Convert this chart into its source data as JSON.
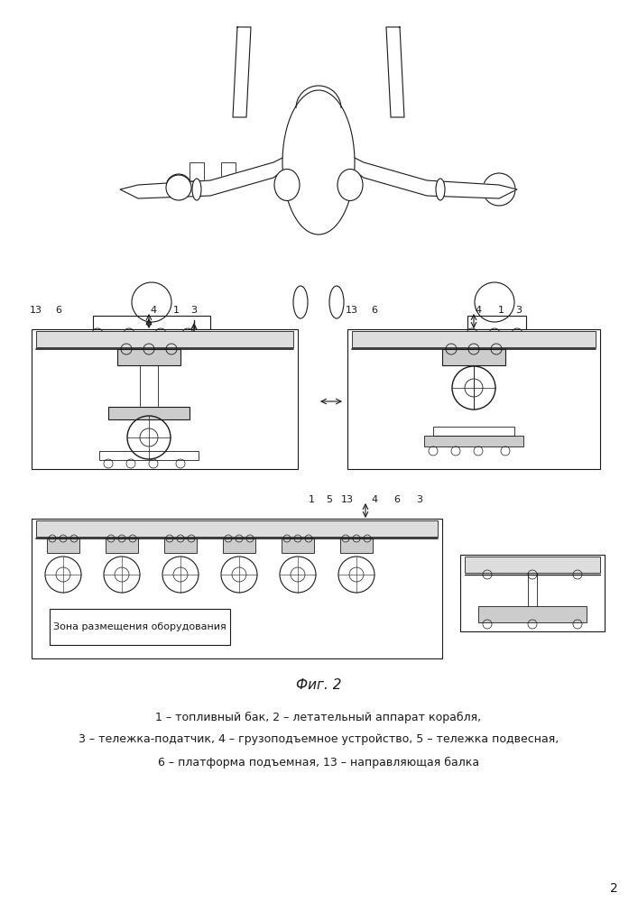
{
  "fig_label": "Фиг. 2",
  "caption_lines": [
    "1 – топливный бак, 2 – летательный аппарат корабля,",
    "3 – тележка-податчик, 4 – грузоподъемное устройство, 5 – тележка подвесная,",
    "6 – платформа подъемная, 13 – направляющая балка"
  ],
  "page_number": "2",
  "background_color": "#ffffff",
  "line_color": "#1a1a1a",
  "zone_label": "Зона размещения оборудования"
}
